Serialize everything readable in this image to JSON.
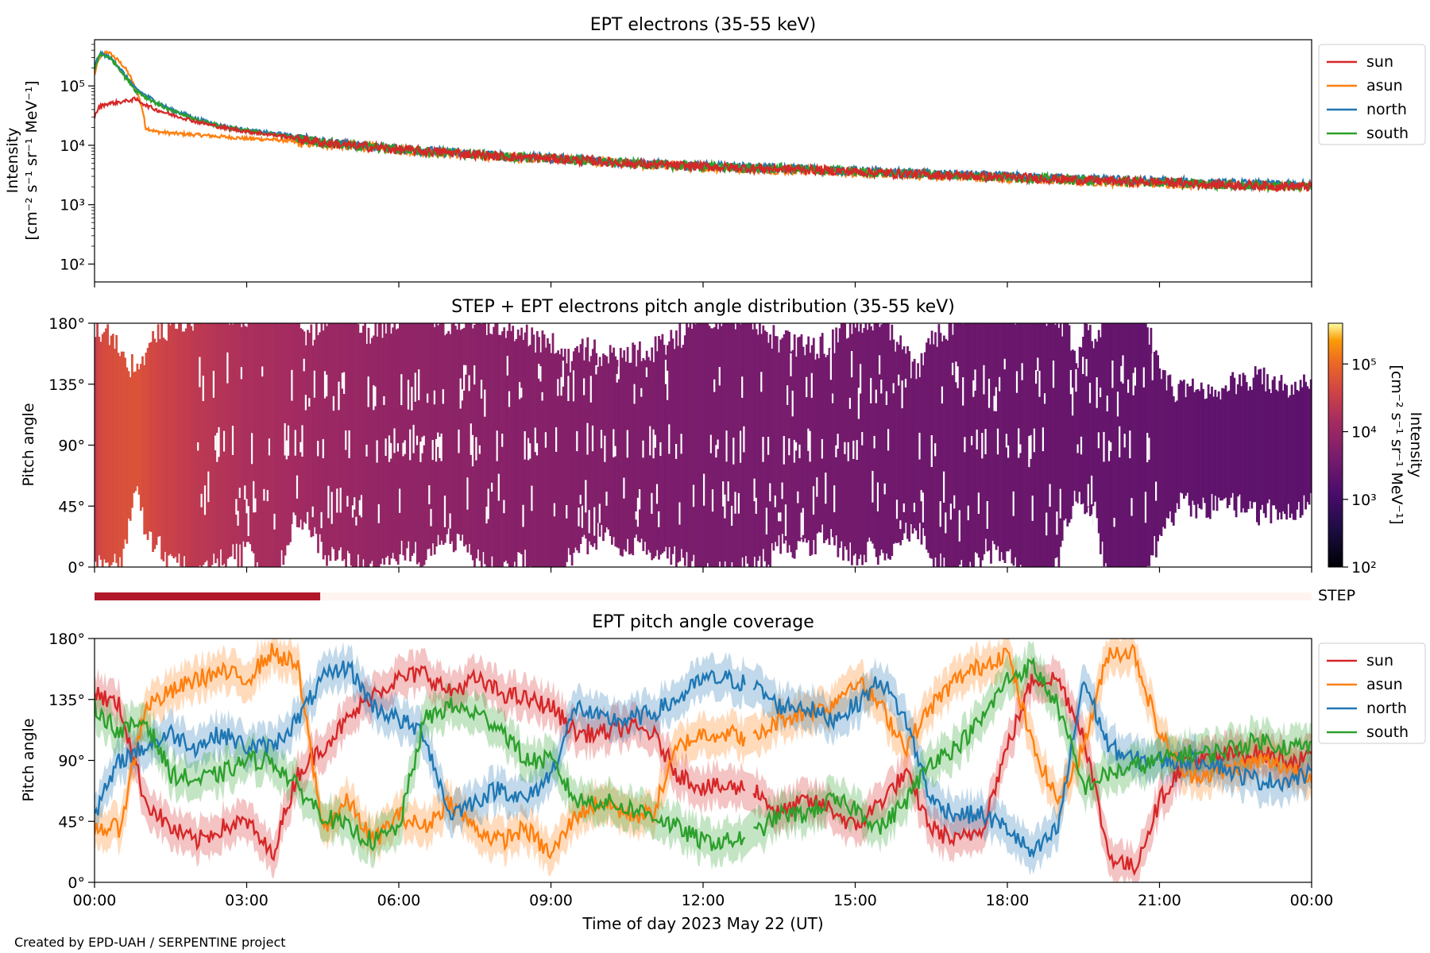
{
  "footer": "Created by EPD-UAH / SERPENTINE project",
  "xlabel": "Time of day 2023 May 22 (UT)",
  "x_ticks": [
    "00:00",
    "03:00",
    "06:00",
    "09:00",
    "12:00",
    "15:00",
    "18:00",
    "21:00",
    "00:00"
  ],
  "colors": {
    "sun": "#d62728",
    "asun": "#ff7f0e",
    "north": "#1f77b4",
    "south": "#2ca02c",
    "step": "#b2182b"
  },
  "chart_data": [
    {
      "type": "line",
      "title": "EPT electrons (35-55 keV)",
      "ylabel": "Intensity",
      "yunits": "[cm⁻² s⁻¹ sr⁻¹ MeV⁻¹]",
      "yscale": "log",
      "ylim": [
        50,
        600000
      ],
      "y_ticks": [
        "10²",
        "10³",
        "10⁴",
        "10⁵"
      ],
      "x": [
        0,
        0.1,
        0.25,
        0.4,
        0.6,
        0.8,
        1.0,
        1.2,
        1.5,
        2.0,
        2.5,
        3.0,
        3.5,
        3.8,
        4.0,
        4.5,
        5,
        6,
        7,
        8,
        9,
        10,
        11,
        12,
        13,
        14,
        15,
        16,
        17,
        18,
        19,
        20,
        21,
        22,
        23,
        24
      ],
      "legend": "top-right outside",
      "series": [
        {
          "name": "sun",
          "values": [
            30000,
            45000,
            50000,
            52000,
            55000,
            60000,
            48000,
            40000,
            33000,
            25000,
            20000,
            17000,
            15000,
            14000,
            13000,
            11000,
            10000,
            8500,
            7500,
            6500,
            6000,
            5300,
            4700,
            4400,
            4100,
            3900,
            3600,
            3300,
            3100,
            2900,
            2700,
            2500,
            2400,
            2200,
            2100,
            2000
          ]
        },
        {
          "name": "asun",
          "values": [
            150000,
            300000,
            380000,
            300000,
            200000,
            90000,
            20000,
            17000,
            16000,
            15000,
            14000,
            13000,
            12500,
            12000,
            11000,
            10500,
            9800,
            8400,
            7300,
            6400,
            5900,
            5200,
            4600,
            4300,
            4000,
            3800,
            3500,
            3200,
            3000,
            2800,
            2600,
            2400,
            2300,
            2200,
            2100,
            2000
          ]
        },
        {
          "name": "north",
          "values": [
            200000,
            350000,
            320000,
            250000,
            150000,
            90000,
            70000,
            55000,
            40000,
            28000,
            21000,
            18000,
            16000,
            15000,
            13500,
            11500,
            10200,
            8700,
            7600,
            6600,
            6100,
            5400,
            4800,
            4500,
            4200,
            4000,
            3700,
            3400,
            3200,
            3000,
            2800,
            2600,
            2500,
            2300,
            2200,
            2100
          ]
        },
        {
          "name": "south",
          "values": [
            180000,
            330000,
            320000,
            240000,
            140000,
            85000,
            65000,
            52000,
            38000,
            27000,
            20500,
            17500,
            15500,
            14000,
            13200,
            11200,
            10000,
            8600,
            7500,
            6500,
            6000,
            5300,
            4700,
            4400,
            4100,
            3900,
            3600,
            3300,
            3100,
            2900,
            2700,
            2500,
            2400,
            2200,
            2100,
            2000
          ]
        }
      ]
    },
    {
      "type": "heatmap",
      "title": "STEP + EPT electrons pitch angle distribution (35-55 keV)",
      "ylabel": "Pitch angle",
      "ylim": [
        0,
        180
      ],
      "y_ticks": [
        "0°",
        "45°",
        "90°",
        "135°",
        "180°"
      ],
      "colorbar": {
        "label": "Intensity",
        "units": "[cm⁻² s⁻¹ sr⁻¹ MeV⁻¹]",
        "scale": "log",
        "range": [
          100,
          400000
        ],
        "ticks": [
          "10²",
          "10³",
          "10⁴",
          "10⁵"
        ]
      }
    },
    {
      "type": "bar",
      "label": "STEP",
      "coverage_hours": [
        0,
        4.45
      ]
    },
    {
      "type": "line",
      "title": "EPT pitch angle coverage",
      "ylabel": "Pitch angle",
      "ylim": [
        0,
        180
      ],
      "y_ticks": [
        "0°",
        "45°",
        "90°",
        "135°",
        "180°"
      ],
      "legend": "top-right outside",
      "x": [
        0,
        0.5,
        1,
        1.5,
        2,
        2.5,
        3,
        3.5,
        4,
        4.5,
        5,
        5.5,
        6,
        6.5,
        7,
        7.5,
        8,
        8.5,
        9,
        9.5,
        10,
        10.5,
        11,
        11.5,
        12,
        12.5,
        13,
        13.5,
        14,
        14.5,
        15,
        15.5,
        16,
        16.5,
        17,
        17.5,
        18,
        18.5,
        19,
        19.5,
        20,
        20.5,
        21,
        21.5,
        22,
        22.5,
        23,
        23.5,
        24
      ],
      "series": [
        {
          "name": "sun",
          "values": [
            140,
            130,
            60,
            40,
            30,
            40,
            45,
            20,
            80,
            100,
            120,
            140,
            150,
            155,
            140,
            150,
            140,
            135,
            130,
            110,
            110,
            115,
            110,
            80,
            70,
            70,
            70,
            50,
            60,
            55,
            40,
            60,
            80,
            40,
            30,
            40,
            100,
            150,
            150,
            110,
            20,
            10,
            60,
            90,
            90,
            95,
            95,
            90,
            90
          ]
        },
        {
          "name": "asun",
          "values": [
            40,
            40,
            130,
            140,
            150,
            155,
            150,
            170,
            160,
            40,
            60,
            30,
            50,
            40,
            60,
            40,
            30,
            40,
            20,
            50,
            60,
            50,
            50,
            100,
            110,
            110,
            105,
            120,
            125,
            130,
            150,
            130,
            100,
            130,
            150,
            160,
            170,
            100,
            60,
            100,
            170,
            170,
            110,
            80,
            80,
            85,
            90,
            85,
            80
          ]
        },
        {
          "name": "north",
          "values": [
            50,
            90,
            100,
            110,
            100,
            110,
            100,
            100,
            120,
            150,
            160,
            130,
            120,
            110,
            50,
            60,
            70,
            60,
            80,
            130,
            120,
            120,
            125,
            135,
            150,
            150,
            145,
            130,
            130,
            120,
            130,
            150,
            120,
            60,
            50,
            50,
            40,
            20,
            40,
            150,
            100,
            90,
            90,
            90,
            90,
            80,
            75,
            75,
            80
          ]
        },
        {
          "name": "south",
          "values": [
            130,
            110,
            120,
            80,
            75,
            80,
            90,
            90,
            70,
            50,
            40,
            30,
            40,
            120,
            130,
            125,
            115,
            90,
            90,
            60,
            60,
            55,
            50,
            40,
            30,
            30,
            35,
            50,
            50,
            60,
            55,
            40,
            60,
            90,
            100,
            120,
            150,
            160,
            130,
            70,
            80,
            85,
            90,
            95,
            95,
            100,
            105,
            100,
            100
          ]
        }
      ]
    }
  ]
}
